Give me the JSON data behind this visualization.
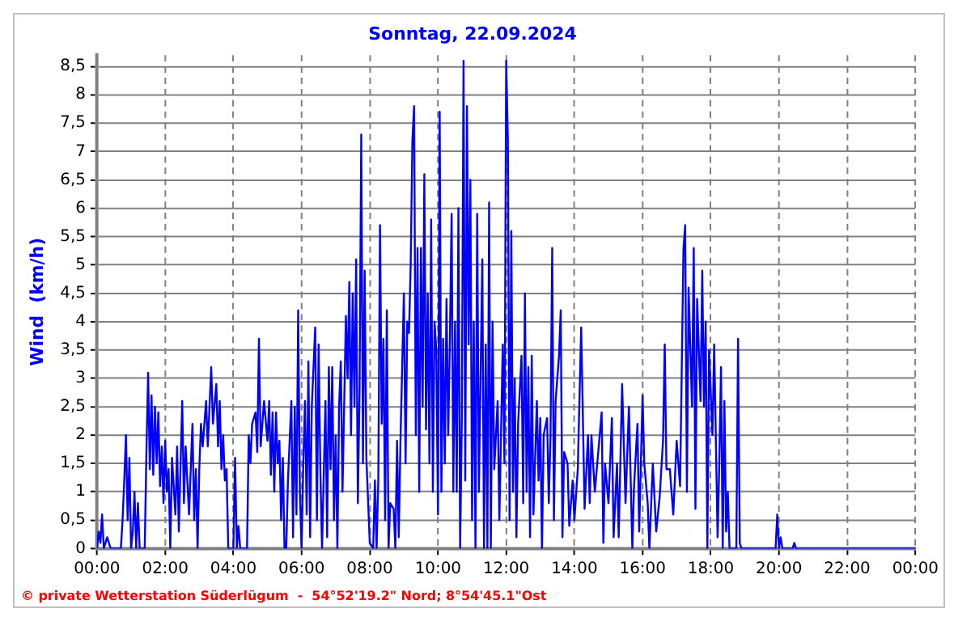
{
  "chart_data": {
    "type": "line",
    "title": "Sonntag, 22.09.2024",
    "ylabel": "Wind  (km/h)",
    "annotations": [
      "© private Wetterstation Süderlügum  -  54°52'19.2\" Nord; 8°54'45.1\"Ost"
    ],
    "xlim": [
      0,
      24
    ],
    "xticks": [
      {
        "value": 0,
        "label": "00:00"
      },
      {
        "value": 2,
        "label": "02:00"
      },
      {
        "value": 4,
        "label": "04:00"
      },
      {
        "value": 6,
        "label": "06:00"
      },
      {
        "value": 8,
        "label": "08:00"
      },
      {
        "value": 10,
        "label": "10:00"
      },
      {
        "value": 12,
        "label": "12:00"
      },
      {
        "value": 14,
        "label": "14:00"
      },
      {
        "value": 16,
        "label": "16:00"
      },
      {
        "value": 18,
        "label": "18:00"
      },
      {
        "value": 20,
        "label": "20:00"
      },
      {
        "value": 22,
        "label": "22:00"
      },
      {
        "value": 24,
        "label": "00:00"
      }
    ],
    "ylim": [
      0,
      8.7
    ],
    "yticks": [
      0,
      {
        "value": 0.5,
        "label": "0,5"
      },
      1,
      {
        "value": 1.5,
        "label": "1,5"
      },
      2,
      {
        "value": 2.5,
        "label": "2,5"
      },
      3,
      {
        "value": 3.5,
        "label": "3,5"
      },
      4,
      {
        "value": 4.5,
        "label": "4,5"
      },
      5,
      {
        "value": 5.5,
        "label": "5,5"
      },
      6,
      {
        "value": 6.5,
        "label": "6,5"
      },
      7,
      {
        "value": 7.5,
        "label": "7,5"
      },
      8,
      {
        "value": 8.5,
        "label": "8,5"
      }
    ],
    "grid": true,
    "marker": "none",
    "line_style": "solid",
    "series": [
      {
        "color": "#0000ff",
        "x": [
          0,
          0.05,
          0.1,
          0.15,
          0.2,
          0.3,
          0.4,
          0.7,
          0.75,
          0.8,
          0.85,
          0.9,
          0.95,
          1.0,
          1.05,
          1.1,
          1.15,
          1.2,
          1.25,
          1.4,
          1.45,
          1.5,
          1.55,
          1.6,
          1.65,
          1.7,
          1.75,
          1.8,
          1.85,
          1.9,
          1.95,
          2.0,
          2.05,
          2.1,
          2.15,
          2.2,
          2.3,
          2.35,
          2.4,
          2.5,
          2.55,
          2.6,
          2.7,
          2.8,
          2.85,
          2.9,
          2.95,
          3.0,
          3.05,
          3.1,
          3.2,
          3.25,
          3.35,
          3.4,
          3.5,
          3.55,
          3.6,
          3.65,
          3.7,
          3.75,
          3.8,
          3.85,
          4.0,
          4.05,
          4.1,
          4.15,
          4.2,
          4.4,
          4.45,
          4.5,
          4.55,
          4.65,
          4.7,
          4.75,
          4.8,
          4.9,
          5.0,
          5.05,
          5.1,
          5.15,
          5.2,
          5.25,
          5.3,
          5.35,
          5.4,
          5.45,
          5.5,
          5.55,
          5.6,
          5.7,
          5.75,
          5.8,
          5.85,
          5.9,
          5.95,
          6.0,
          6.05,
          6.1,
          6.15,
          6.2,
          6.25,
          6.3,
          6.4,
          6.45,
          6.5,
          6.55,
          6.6,
          6.7,
          6.75,
          6.8,
          6.85,
          6.9,
          6.95,
          7.0,
          7.05,
          7.1,
          7.15,
          7.2,
          7.3,
          7.35,
          7.4,
          7.45,
          7.5,
          7.55,
          7.6,
          7.65,
          7.7,
          7.75,
          7.8,
          7.85,
          7.9,
          8.0,
          8.1,
          8.15,
          8.2,
          8.25,
          8.3,
          8.35,
          8.4,
          8.45,
          8.5,
          8.55,
          8.6,
          8.7,
          8.75,
          8.8,
          8.85,
          8.9,
          9.0,
          9.05,
          9.1,
          9.15,
          9.2,
          9.25,
          9.3,
          9.35,
          9.4,
          9.45,
          9.5,
          9.55,
          9.6,
          9.65,
          9.7,
          9.75,
          9.8,
          9.85,
          9.9,
          9.95,
          10.0,
          10.05,
          10.1,
          10.15,
          10.2,
          10.25,
          10.3,
          10.35,
          10.4,
          10.45,
          10.5,
          10.55,
          10.6,
          10.65,
          10.7,
          10.75,
          10.8,
          10.85,
          10.9,
          10.95,
          11.0,
          11.05,
          11.1,
          11.15,
          11.2,
          11.3,
          11.35,
          11.4,
          11.45,
          11.5,
          11.55,
          11.6,
          11.65,
          11.75,
          11.8,
          11.9,
          11.95,
          12.0,
          12.05,
          12.1,
          12.15,
          12.2,
          12.25,
          12.3,
          12.35,
          12.45,
          12.5,
          12.55,
          12.6,
          12.65,
          12.7,
          12.75,
          12.8,
          12.9,
          12.95,
          13.0,
          13.05,
          13.1,
          13.2,
          13.25,
          13.3,
          13.35,
          13.4,
          13.45,
          13.55,
          13.6,
          13.65,
          13.7,
          13.8,
          13.85,
          13.95,
          14.0,
          14.1,
          14.2,
          14.3,
          14.4,
          14.45,
          14.5,
          14.6,
          14.8,
          14.85,
          14.9,
          15.0,
          15.1,
          15.15,
          15.25,
          15.3,
          15.4,
          15.5,
          15.6,
          15.7,
          15.75,
          15.85,
          15.9,
          16.0,
          16.05,
          16.15,
          16.2,
          16.3,
          16.4,
          16.5,
          16.6,
          16.65,
          16.7,
          16.8,
          16.9,
          17.0,
          17.1,
          17.2,
          17.25,
          17.3,
          17.35,
          17.45,
          17.5,
          17.55,
          17.6,
          17.7,
          17.75,
          17.8,
          17.85,
          17.9,
          17.95,
          18.05,
          18.1,
          18.2,
          18.25,
          18.3,
          18.35,
          18.4,
          18.45,
          18.5,
          18.55,
          18.75,
          18.8,
          18.85,
          18.9,
          19.9,
          19.95,
          20.0,
          20.05,
          20.1,
          20.4,
          20.45,
          20.5,
          24
        ],
        "values": [
          0,
          0.3,
          0.1,
          0.6,
          0,
          0.2,
          0,
          0,
          0.5,
          1.2,
          2.0,
          0.5,
          1.6,
          0,
          0.3,
          1.0,
          0,
          0.8,
          0,
          0,
          1.7,
          3.1,
          1.4,
          2.7,
          1.3,
          2.5,
          1.5,
          2.4,
          1.1,
          1.8,
          0.8,
          1.9,
          1.0,
          1.4,
          0,
          1.6,
          0.6,
          1.8,
          0.3,
          2.6,
          0.8,
          1.8,
          0.6,
          2.2,
          0.5,
          1.4,
          0,
          1.4,
          2.2,
          1.8,
          2.6,
          1.8,
          3.2,
          2.2,
          2.9,
          1.8,
          2.6,
          1.4,
          2.0,
          1.2,
          1.4,
          0,
          0,
          1.6,
          0,
          0.4,
          0,
          0,
          2.0,
          1.5,
          2.2,
          2.4,
          1.7,
          3.7,
          1.8,
          2.6,
          1.9,
          2.6,
          1.3,
          2.4,
          1.0,
          2.4,
          1.5,
          1.9,
          0.5,
          1.6,
          0,
          0,
          1.2,
          2.6,
          0.2,
          2.5,
          0.6,
          4.2,
          1.0,
          0,
          1.5,
          2.6,
          0.6,
          3.3,
          0.2,
          2.5,
          3.9,
          0.5,
          3.6,
          1.4,
          0,
          2.6,
          0.2,
          3.2,
          1.4,
          3.2,
          0.5,
          2.0,
          0,
          2.5,
          3.3,
          1.0,
          4.1,
          3.0,
          4.7,
          2.0,
          4.5,
          2.5,
          5.1,
          0.8,
          2.8,
          7.3,
          1.5,
          4.9,
          1.6,
          0.1,
          0,
          1.2,
          0,
          1.2,
          5.7,
          2.2,
          3.7,
          0.5,
          4.2,
          0,
          0.8,
          0.7,
          0,
          1.9,
          0.2,
          1.9,
          4.5,
          1.5,
          4.0,
          3.8,
          5.0,
          7.2,
          7.8,
          2.0,
          5.3,
          1.0,
          5.3,
          2.5,
          6.6,
          2.1,
          4.5,
          1.5,
          5.8,
          1.0,
          4.0,
          3.5,
          0.6,
          7.7,
          1.0,
          3.7,
          1.5,
          4.4,
          2.0,
          3.7,
          5.9,
          1.0,
          4.0,
          1.0,
          6.0,
          0,
          2.3,
          8.6,
          1.2,
          7.8,
          3.6,
          6.5,
          0.5,
          4.0,
          0,
          5.9,
          1.0,
          5.1,
          0,
          3.6,
          0,
          6.1,
          0,
          4.0,
          1.4,
          2.6,
          0.5,
          3.6,
          1.5,
          8.6,
          7.2,
          0.5,
          5.6,
          1.0,
          3.0,
          0.2,
          2.2,
          3.4,
          0.8,
          4.5,
          1.0,
          3.2,
          0.2,
          3.4,
          0.6,
          2.6,
          1.2,
          2.3,
          0,
          2.0,
          2.3,
          0.8,
          2.0,
          5.3,
          0.5,
          2.6,
          3.4,
          4.2,
          0.2,
          1.7,
          1.5,
          0.4,
          1.2,
          0.5,
          1.4,
          3.9,
          0.7,
          2.0,
          0.8,
          2.0,
          1.0,
          2.4,
          0.1,
          1.5,
          0.8,
          2.3,
          0.2,
          1.5,
          0.2,
          2.9,
          0.8,
          2.5,
          0,
          1.1,
          2.2,
          0.3,
          2.7,
          1.5,
          0.8,
          0,
          1.5,
          0.3,
          0.9,
          1.9,
          3.6,
          1.4,
          1.4,
          0.6,
          1.9,
          1.1,
          5.3,
          5.7,
          1.0,
          4.6,
          2.5,
          5.3,
          0.7,
          4.4,
          2.6,
          4.9,
          2.5,
          4.0,
          0,
          3.5,
          2.0,
          3.6,
          0.2,
          1.5,
          3.2,
          0,
          2.6,
          0.3,
          1.0,
          0,
          0,
          3.7,
          0.1,
          0,
          0,
          0.6,
          0,
          0.2,
          0,
          0,
          0.1,
          0,
          0
        ]
      }
    ]
  }
}
